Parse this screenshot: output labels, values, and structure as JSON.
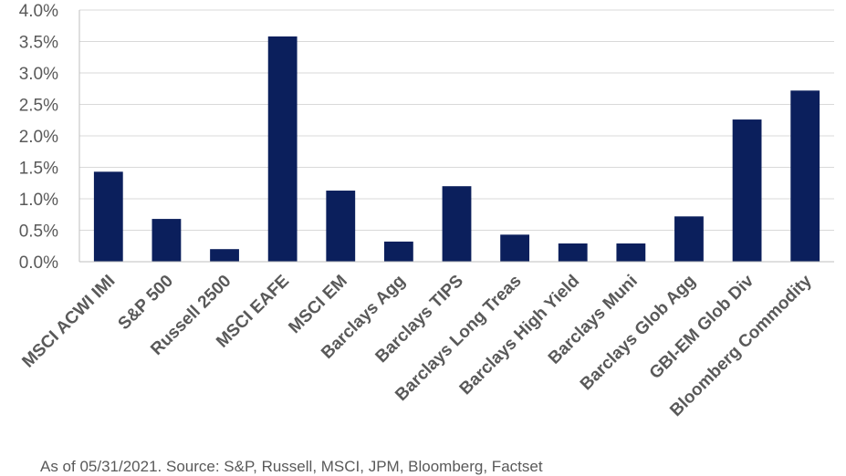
{
  "chart_data": {
    "type": "bar",
    "categories": [
      "MSCI ACWI IMI",
      "S&P 500",
      "Russell 2500",
      "MSCI EAFE",
      "MSCI EM",
      "Barclays Agg",
      "Barclays TIPS",
      "Barclays Long Treas",
      "Barclays High Yield",
      "Barclays Muni",
      "Barclays Glob Agg",
      "GBI-EM Glob Div",
      "Bloomberg Commodity"
    ],
    "values": [
      1.43,
      0.68,
      0.2,
      3.58,
      1.13,
      0.32,
      1.2,
      0.43,
      0.29,
      0.29,
      0.72,
      2.26,
      2.72
    ],
    "yticks": [
      "0.0%",
      "0.5%",
      "1.0%",
      "1.5%",
      "2.0%",
      "2.5%",
      "3.0%",
      "3.5%",
      "4.0%"
    ],
    "ylim": [
      0,
      4.0
    ],
    "ystep": 0.5,
    "grid": true,
    "bar_color": "#0b1f5c",
    "title": "",
    "xlabel": "",
    "ylabel": ""
  },
  "source_note": "As of 05/31/2021. Source: S&P, Russell, MSCI, JPM, Bloomberg, Factset"
}
